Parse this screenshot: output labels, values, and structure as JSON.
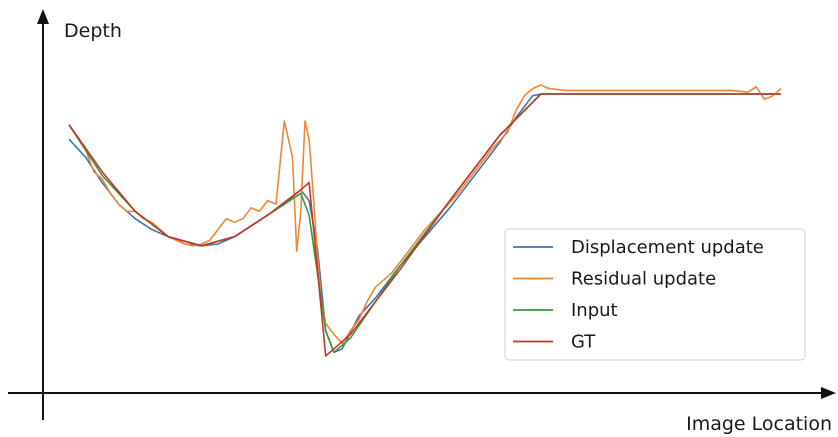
{
  "chart_data": {
    "type": "line",
    "xlabel": "Image Location",
    "ylabel": "Depth",
    "x_ticks": "none",
    "y_ticks": "none",
    "grid": false,
    "legend_position": "lower-right",
    "series": [
      {
        "name": "Displacement update",
        "color": "#3b75af",
        "points": [
          [
            0,
            0.65
          ],
          [
            2,
            0.6
          ],
          [
            4,
            0.53
          ],
          [
            6,
            0.47
          ],
          [
            8,
            0.43
          ],
          [
            10,
            0.4
          ],
          [
            12,
            0.38
          ],
          [
            14,
            0.36
          ],
          [
            16,
            0.355
          ],
          [
            18,
            0.36
          ],
          [
            20,
            0.38
          ],
          [
            22,
            0.41
          ],
          [
            24,
            0.44
          ],
          [
            26,
            0.47
          ],
          [
            28,
            0.51
          ],
          [
            29,
            0.48
          ],
          [
            30,
            0.35
          ],
          [
            31,
            0.12
          ],
          [
            32,
            0.06
          ],
          [
            33,
            0.07
          ],
          [
            35,
            0.16
          ],
          [
            37,
            0.21
          ],
          [
            40,
            0.3
          ],
          [
            43,
            0.38
          ],
          [
            46,
            0.46
          ],
          [
            49,
            0.55
          ],
          [
            52,
            0.64
          ],
          [
            54,
            0.71
          ],
          [
            56,
            0.77
          ],
          [
            57,
            0.775
          ],
          [
            60,
            0.775
          ],
          [
            70,
            0.775
          ],
          [
            80,
            0.775
          ],
          [
            86,
            0.775
          ]
        ]
      },
      {
        "name": "Residual update",
        "color": "#ef8636",
        "points": [
          [
            0,
            0.69
          ],
          [
            2,
            0.62
          ],
          [
            3,
            0.56
          ],
          [
            4,
            0.54
          ],
          [
            5,
            0.5
          ],
          [
            6,
            0.47
          ],
          [
            7,
            0.45
          ],
          [
            8,
            0.45
          ],
          [
            9,
            0.43
          ],
          [
            10,
            0.42
          ],
          [
            11,
            0.4
          ],
          [
            12,
            0.38
          ],
          [
            13,
            0.37
          ],
          [
            14,
            0.36
          ],
          [
            15,
            0.355
          ],
          [
            16,
            0.36
          ],
          [
            17,
            0.37
          ],
          [
            18,
            0.4
          ],
          [
            19,
            0.43
          ],
          [
            20,
            0.42
          ],
          [
            21,
            0.43
          ],
          [
            22,
            0.46
          ],
          [
            23,
            0.45
          ],
          [
            24,
            0.48
          ],
          [
            25,
            0.47
          ],
          [
            26,
            0.7
          ],
          [
            27,
            0.6
          ],
          [
            27.5,
            0.34
          ],
          [
            28,
            0.45
          ],
          [
            28.5,
            0.7
          ],
          [
            29,
            0.65
          ],
          [
            29.5,
            0.5
          ],
          [
            30,
            0.33
          ],
          [
            30.5,
            0.2
          ],
          [
            31,
            0.14
          ],
          [
            32,
            0.11
          ],
          [
            33,
            0.085
          ],
          [
            34,
            0.12
          ],
          [
            35,
            0.15
          ],
          [
            36,
            0.2
          ],
          [
            37,
            0.24
          ],
          [
            39,
            0.28
          ],
          [
            41,
            0.34
          ],
          [
            43,
            0.4
          ],
          [
            45,
            0.45
          ],
          [
            47,
            0.5
          ],
          [
            49,
            0.56
          ],
          [
            51,
            0.62
          ],
          [
            53,
            0.67
          ],
          [
            54,
            0.73
          ],
          [
            55,
            0.77
          ],
          [
            56,
            0.79
          ],
          [
            57,
            0.8
          ],
          [
            58,
            0.79
          ],
          [
            60,
            0.785
          ],
          [
            65,
            0.785
          ],
          [
            70,
            0.785
          ],
          [
            75,
            0.785
          ],
          [
            80,
            0.785
          ],
          [
            82,
            0.78
          ],
          [
            83,
            0.795
          ],
          [
            84,
            0.76
          ],
          [
            85,
            0.77
          ],
          [
            86,
            0.79
          ]
        ]
      },
      {
        "name": "Input",
        "color": "#3a9a3a",
        "points": [
          [
            0,
            0.69
          ],
          [
            4,
            0.55
          ],
          [
            8,
            0.45
          ],
          [
            12,
            0.38
          ],
          [
            16,
            0.355
          ],
          [
            20,
            0.38
          ],
          [
            24,
            0.44
          ],
          [
            28,
            0.5
          ],
          [
            29,
            0.44
          ],
          [
            31,
            0.12
          ],
          [
            32,
            0.06
          ],
          [
            34,
            0.1
          ],
          [
            40,
            0.3
          ],
          [
            46,
            0.48
          ],
          [
            52,
            0.66
          ],
          [
            57,
            0.775
          ],
          [
            86,
            0.775
          ]
        ]
      },
      {
        "name": "GT",
        "color": "#c1392b",
        "points": [
          [
            0,
            0.69
          ],
          [
            4,
            0.56
          ],
          [
            8,
            0.45
          ],
          [
            12,
            0.38
          ],
          [
            16,
            0.355
          ],
          [
            20,
            0.38
          ],
          [
            24,
            0.44
          ],
          [
            28,
            0.51
          ],
          [
            29,
            0.53
          ],
          [
            31,
            0.05
          ],
          [
            34,
            0.11
          ],
          [
            40,
            0.29
          ],
          [
            46,
            0.48
          ],
          [
            52,
            0.66
          ],
          [
            57,
            0.775
          ],
          [
            86,
            0.775
          ]
        ]
      }
    ]
  }
}
